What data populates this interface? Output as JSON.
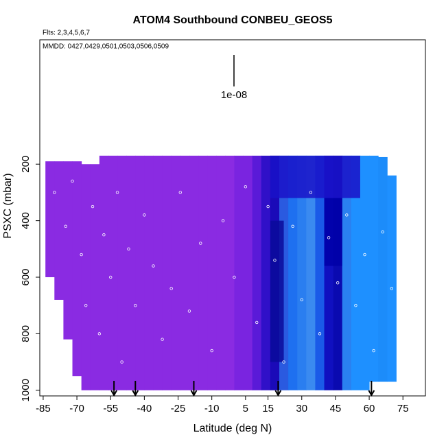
{
  "chart_data": {
    "type": "curtain",
    "title": "ATOM4 Southbound CONBEU_GEOS5",
    "subtitle": "Flts: 2,3,4,5,6,7",
    "note": "MMDD: 0427,0429,0501,0503,0506,0509",
    "annotation": "1e-08",
    "x_label": "Latitude (deg N)",
    "y_label": "PSXC (mbar)",
    "xlim": [
      -86.5,
      85
    ],
    "ylim": [
      1020,
      -240
    ],
    "xticks": [
      -85,
      -70,
      -55,
      -40,
      -25,
      -10,
      5,
      15,
      30,
      45,
      60,
      75
    ],
    "yticks": [
      200,
      400,
      600,
      800,
      1000
    ],
    "curtain": {
      "lat_edges": [
        -84,
        -80,
        -76,
        -72,
        -68,
        -64,
        -60,
        -56,
        -52,
        -48,
        -44,
        -40,
        -36,
        -32,
        -28,
        -24,
        -20,
        -16,
        -12,
        -8,
        -4,
        0,
        4,
        8,
        12,
        16,
        20,
        24,
        28,
        32,
        36,
        40,
        44,
        48,
        52,
        56,
        60,
        64,
        68,
        72
      ],
      "ptop": [
        190,
        190,
        190,
        190,
        200,
        200,
        170,
        170,
        170,
        170,
        170,
        170,
        170,
        170,
        170,
        170,
        170,
        170,
        170,
        170,
        170,
        170,
        170,
        170,
        170,
        170,
        170,
        170,
        170,
        170,
        170,
        170,
        170,
        170,
        170,
        170,
        170,
        175,
        240
      ],
      "pbottom": [
        600,
        680,
        820,
        950,
        1000,
        1000,
        1000,
        1000,
        1000,
        1000,
        1000,
        1000,
        1000,
        1000,
        1000,
        1000,
        1000,
        1000,
        1000,
        1000,
        1000,
        1000,
        1000,
        1000,
        1000,
        1000,
        1000,
        1000,
        1000,
        1000,
        1000,
        1000,
        1000,
        1000,
        1000,
        1000,
        970,
        970,
        970
      ],
      "colors": [
        "#8a2be2",
        "#8a2be2",
        "#8a2be2",
        "#8a2be2",
        "#8a2be2",
        "#8a2be2",
        "#8a2be2",
        "#8a2be2",
        "#8a2be2",
        "#8a2be2",
        "#8a2be2",
        "#8a2be2",
        "#8a2be2",
        "#8a2be2",
        "#8a2be2",
        "#8a2be2",
        "#8a2be2",
        "#8a2be2",
        "#8a2be2",
        "#8a2be2",
        "#8a2be2",
        "#7a24e0",
        "#7a24e0",
        "#5a1ad8",
        "#3010c8",
        "#1a0ab8",
        "#2a5ae0",
        "#1e70f0",
        "#2a7ef0",
        "#3a8af0",
        "#1a5ae8",
        "#1010c0",
        "#0a0ab0",
        "#2a80f0",
        "#1e90ff",
        "#1e90ff",
        "#1e90ff",
        "#1c8cfa",
        "#1e90ff"
      ]
    },
    "patches": [
      {
        "lat": [
          16,
          56
        ],
        "p": [
          170,
          320
        ],
        "color": "#1a12c8"
      },
      {
        "lat": [
          40,
          48
        ],
        "p": [
          320,
          560
        ],
        "color": "#0000a8"
      },
      {
        "lat": [
          16,
          22
        ],
        "p": [
          400,
          900
        ],
        "color": "#0a0a9a"
      }
    ],
    "samples": {
      "x": [
        -80,
        -75,
        -72,
        -68,
        -66,
        -63,
        -60,
        -58,
        -55,
        -52,
        -50,
        -47,
        -44,
        -40,
        -36,
        -32,
        -28,
        -24,
        -20,
        -15,
        -10,
        -5,
        0,
        5,
        10,
        15,
        18,
        22,
        26,
        30,
        34,
        38,
        42,
        46,
        50,
        54,
        58,
        62,
        66,
        70
      ],
      "y": [
        300,
        420,
        260,
        520,
        700,
        350,
        800,
        450,
        600,
        300,
        900,
        500,
        700,
        380,
        560,
        820,
        640,
        300,
        720,
        480,
        860,
        400,
        600,
        280,
        760,
        350,
        540,
        900,
        420,
        680,
        300,
        800,
        460,
        620,
        380,
        700,
        520,
        860,
        440,
        640
      ]
    },
    "arrows_x": [
      -53.5,
      -44,
      -18,
      19.5,
      61
    ]
  }
}
